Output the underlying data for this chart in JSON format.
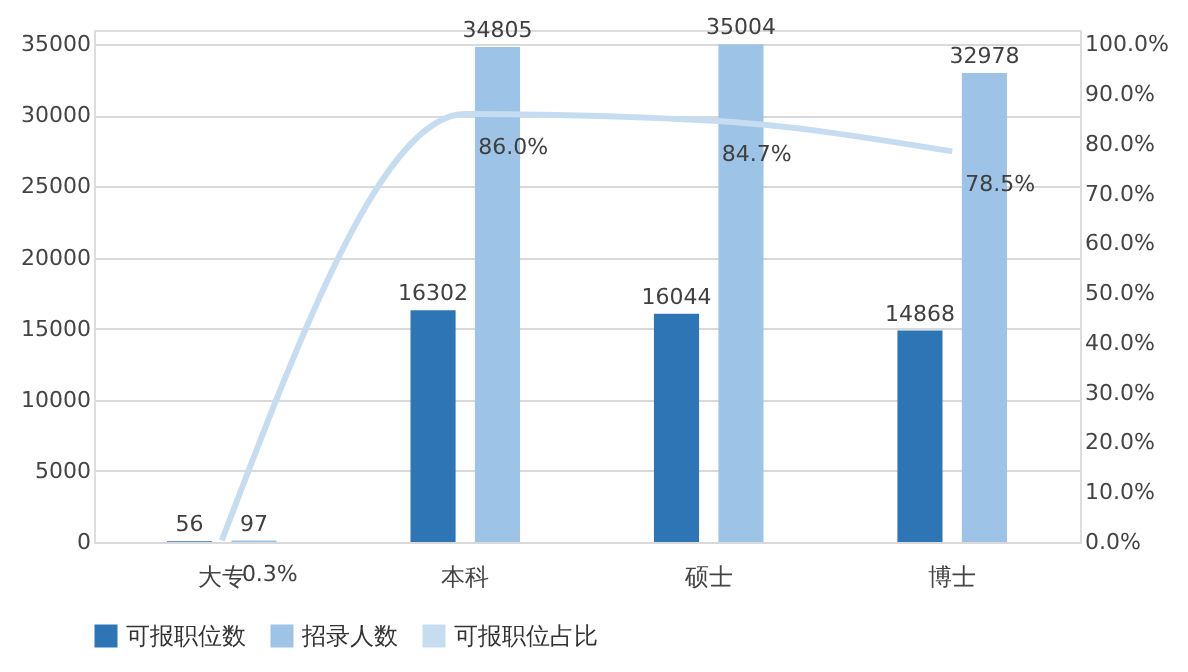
{
  "chart_data": {
    "type": "bar",
    "categories": [
      "大专",
      "本科",
      "硕士",
      "博士"
    ],
    "series": [
      {
        "name": "可报职位数",
        "type": "bar",
        "color": "#2e75b6",
        "values": [
          56,
          16302,
          16044,
          14868
        ],
        "value_labels": [
          "56",
          "16302",
          "16044",
          "14868"
        ]
      },
      {
        "name": "招录人数",
        "type": "bar",
        "color": "#9dc3e6",
        "values": [
          97,
          34805,
          35004,
          32978
        ],
        "value_labels": [
          "97",
          "34805",
          "35004",
          "32978"
        ]
      },
      {
        "name": "可报职位占比",
        "type": "line",
        "axis": "y2",
        "color": "#c6ddf1",
        "values": [
          0.3,
          86.0,
          84.7,
          78.5
        ],
        "value_labels": [
          "0.3%",
          "86.0%",
          "84.7%",
          "78.5%"
        ]
      }
    ],
    "ylim": [
      0,
      36000
    ],
    "yticks": [
      0,
      5000,
      10000,
      15000,
      20000,
      25000,
      30000,
      35000
    ],
    "y2lim": [
      0,
      102.9
    ],
    "y2ticks": [
      {
        "value": 0,
        "label": "0.0%"
      },
      {
        "value": 10,
        "label": "10.0%"
      },
      {
        "value": 20,
        "label": "20.0%"
      },
      {
        "value": 30,
        "label": "30.0%"
      },
      {
        "value": 40,
        "label": "40.0%"
      },
      {
        "value": 50,
        "label": "50.0%"
      },
      {
        "value": 60,
        "label": "60.0%"
      },
      {
        "value": 70,
        "label": "70.0%"
      },
      {
        "value": 80,
        "label": "80.0%"
      },
      {
        "value": 90,
        "label": "90.0%"
      },
      {
        "value": 100,
        "label": "100.0%"
      }
    ],
    "grid": "y",
    "legend": "bottom"
  }
}
